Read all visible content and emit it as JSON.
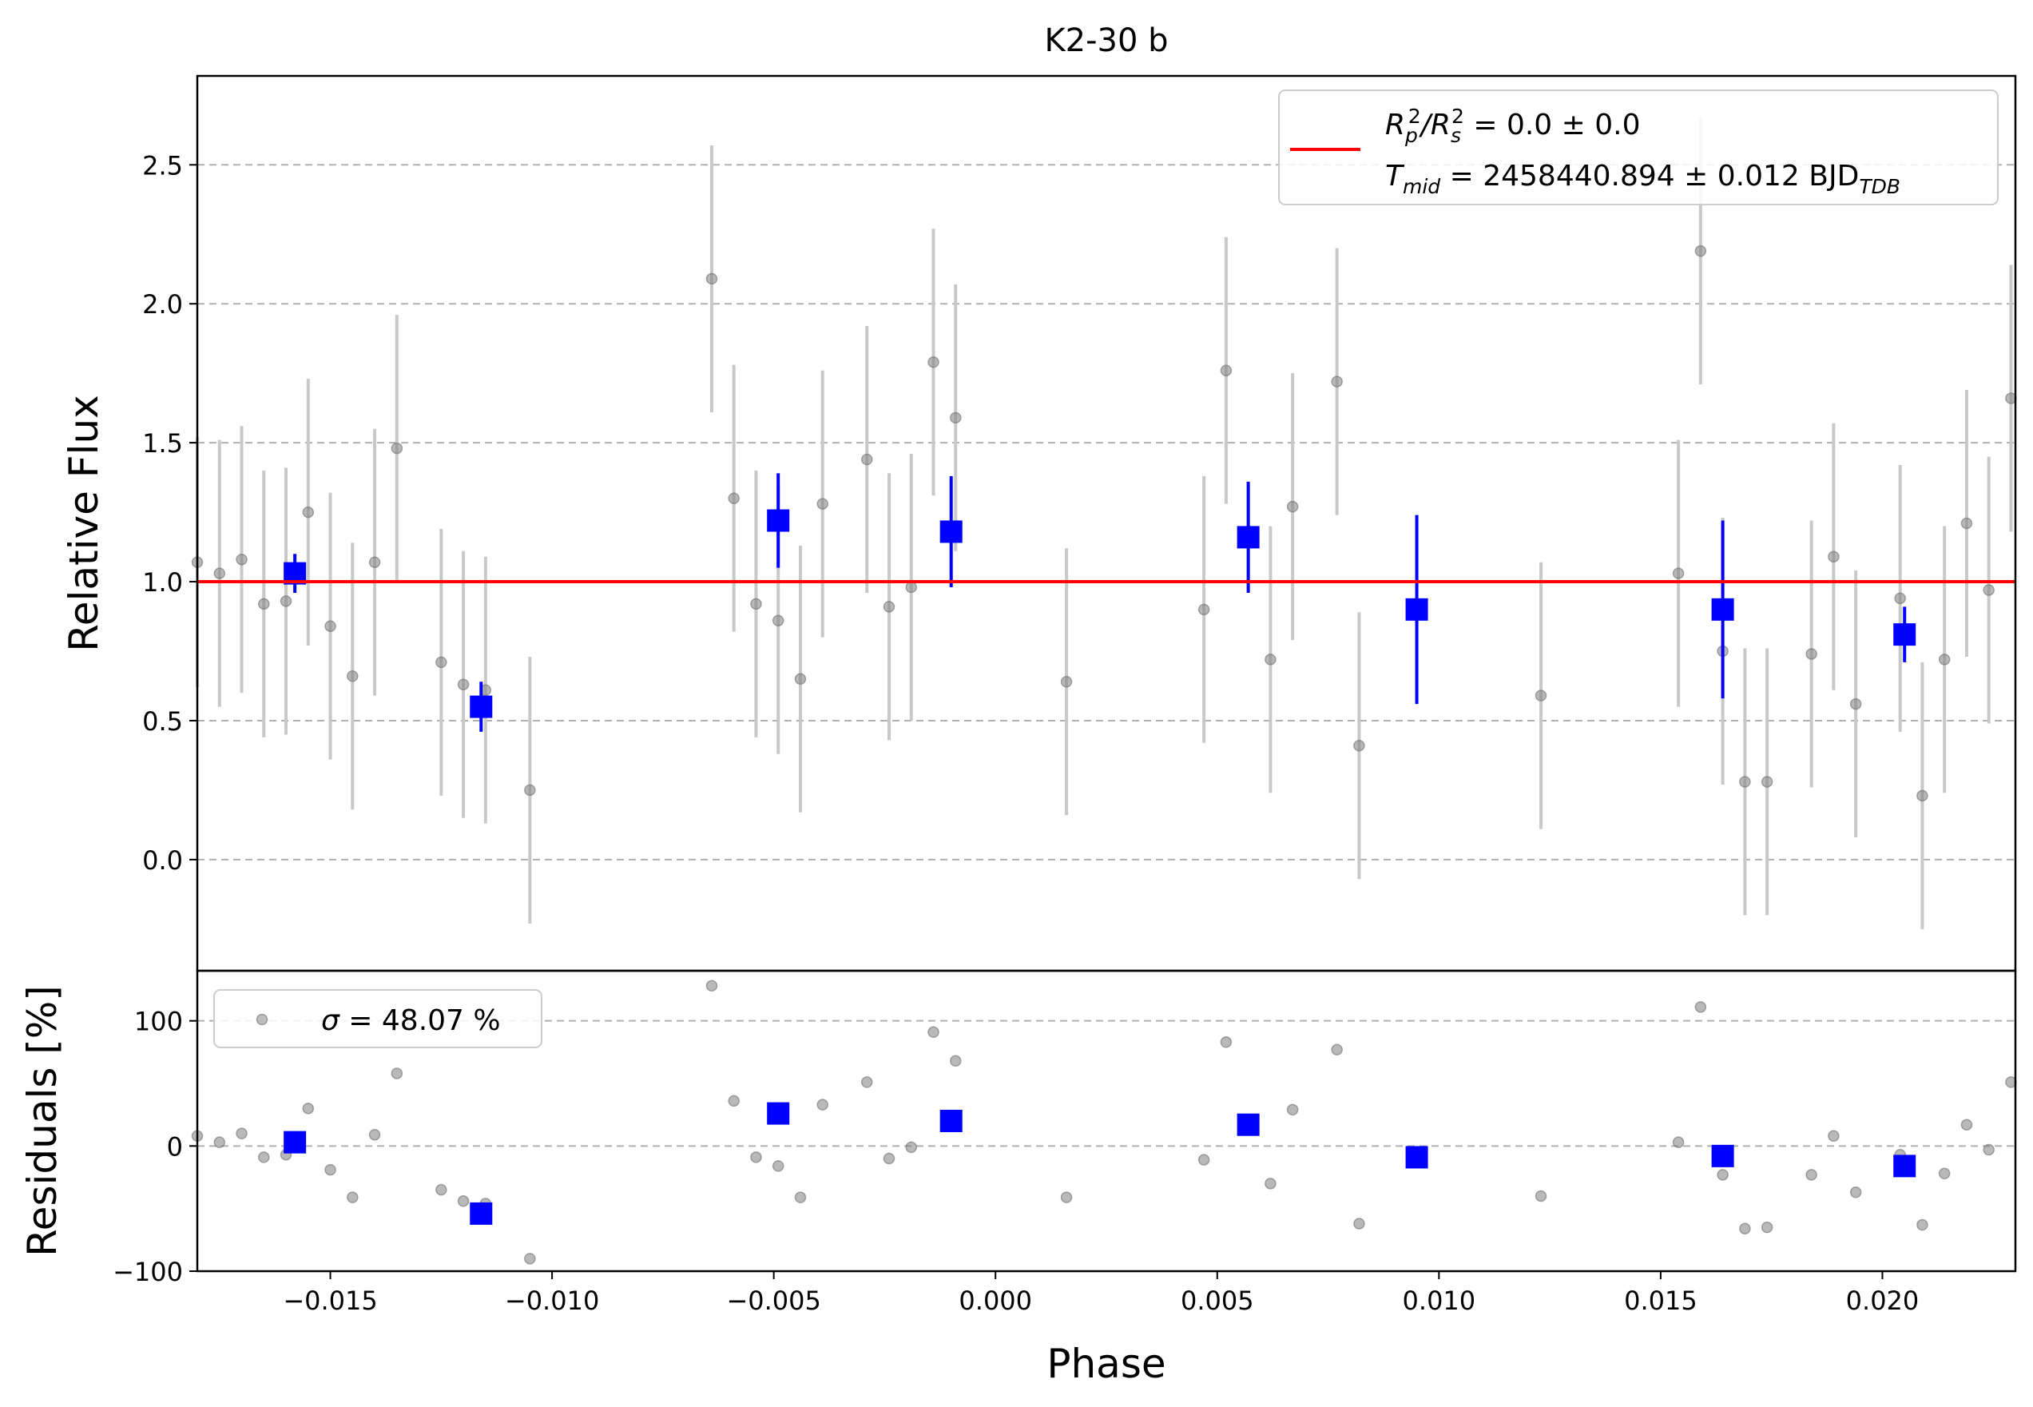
{
  "figure": {
    "title": "K2-30 b",
    "xlabel": "Phase",
    "top_ylabel": "Relative Flux",
    "bottom_ylabel": "Residuals [%]"
  },
  "legend_top": {
    "line1": {
      "main": "R",
      "sub1": "p",
      "sup1": "2",
      "mid": "/R",
      "sub2": "s",
      "sup2": "2",
      "rest": " = 0.0 ± 0.0"
    },
    "line2": {
      "main": "T",
      "sub1": "mid",
      "rest": " = 2458440.894 ± 0.012 BJD",
      "sub2": "TDB"
    }
  },
  "legend_bottom": {
    "sigma_symbol": "σ",
    "sigma_text": " = 48.07 %"
  },
  "colors": {
    "model": "#ff0000",
    "binned": "#0000ff",
    "raw_point": "#808080",
    "raw_err": "#c8c8c8",
    "grid": "#b0b0b0"
  },
  "chart_data": [
    {
      "type": "scatter",
      "panel": "top",
      "title": "K2-30 b",
      "xlabel": "",
      "ylabel": "Relative Flux",
      "xlim": [
        -0.018,
        0.023
      ],
      "ylim": [
        -0.4,
        2.82
      ],
      "yticks": [
        0.0,
        0.5,
        1.0,
        1.5,
        2.0,
        2.5
      ],
      "ytick_labels": [
        "0.0",
        "0.5",
        "1.0",
        "1.5",
        "2.0",
        "2.5"
      ],
      "grid": "horizontal dashed",
      "legend": "top-right",
      "model_line": {
        "y": 1.0
      },
      "raw_points": [
        [
          -0.018,
          1.07,
          0.45
        ],
        [
          -0.0175,
          1.03,
          0.48
        ],
        [
          -0.017,
          1.08,
          0.48
        ],
        [
          -0.0165,
          0.92,
          0.48
        ],
        [
          -0.016,
          0.93,
          0.48
        ],
        [
          -0.0155,
          1.25,
          0.48
        ],
        [
          -0.015,
          0.84,
          0.48
        ],
        [
          -0.0145,
          0.66,
          0.48
        ],
        [
          -0.014,
          1.07,
          0.48
        ],
        [
          -0.0135,
          1.48,
          0.48
        ],
        [
          -0.0125,
          0.71,
          0.48
        ],
        [
          -0.012,
          0.63,
          0.48
        ],
        [
          -0.0115,
          0.61,
          0.48
        ],
        [
          -0.0105,
          0.25,
          0.48
        ],
        [
          -0.0064,
          2.09,
          0.48
        ],
        [
          -0.0059,
          1.3,
          0.48
        ],
        [
          -0.0054,
          0.92,
          0.48
        ],
        [
          -0.0049,
          0.86,
          0.48
        ],
        [
          -0.0044,
          0.65,
          0.48
        ],
        [
          -0.0039,
          1.28,
          0.48
        ],
        [
          -0.0029,
          1.44,
          0.48
        ],
        [
          -0.0024,
          0.91,
          0.48
        ],
        [
          -0.0019,
          0.98,
          0.48
        ],
        [
          -0.0014,
          1.79,
          0.48
        ],
        [
          -0.0009,
          1.59,
          0.48
        ],
        [
          0.0016,
          0.64,
          0.48
        ],
        [
          0.0047,
          0.9,
          0.48
        ],
        [
          0.0052,
          1.76,
          0.48
        ],
        [
          0.0062,
          0.72,
          0.48
        ],
        [
          0.0067,
          1.27,
          0.48
        ],
        [
          0.0077,
          1.72,
          0.48
        ],
        [
          0.0082,
          0.41,
          0.48
        ],
        [
          0.0123,
          0.59,
          0.48
        ],
        [
          0.0154,
          1.03,
          0.48
        ],
        [
          0.0159,
          2.19,
          0.48
        ],
        [
          0.0164,
          0.75,
          0.48
        ],
        [
          0.0169,
          0.28,
          0.48
        ],
        [
          0.0174,
          0.28,
          0.48
        ],
        [
          0.0184,
          0.74,
          0.48
        ],
        [
          0.0189,
          1.09,
          0.48
        ],
        [
          0.0194,
          0.56,
          0.48
        ],
        [
          0.0204,
          0.94,
          0.48
        ],
        [
          0.0209,
          0.23,
          0.48
        ],
        [
          0.0214,
          0.72,
          0.48
        ],
        [
          0.0219,
          1.21,
          0.48
        ],
        [
          0.0224,
          0.97,
          0.48
        ],
        [
          0.0229,
          1.66,
          0.48
        ]
      ],
      "binned_points": [
        [
          -0.0158,
          1.03,
          0.07
        ],
        [
          -0.0116,
          0.55,
          0.09
        ],
        [
          -0.0049,
          1.22,
          0.17
        ],
        [
          -0.001,
          1.18,
          0.2
        ],
        [
          0.0057,
          1.16,
          0.2
        ],
        [
          0.0095,
          0.9,
          0.34
        ],
        [
          0.0164,
          0.9,
          0.32
        ],
        [
          0.0205,
          0.81,
          0.1
        ]
      ]
    },
    {
      "type": "scatter",
      "panel": "bottom",
      "xlabel": "Phase",
      "ylabel": "Residuals [%]",
      "xlim": [
        -0.018,
        0.023
      ],
      "ylim": [
        -100,
        140
      ],
      "yticks": [
        -100,
        0,
        100
      ],
      "ytick_labels": [
        "−100",
        "0",
        "100"
      ],
      "xticks": [
        -0.015,
        -0.01,
        -0.005,
        0.0,
        0.005,
        0.01,
        0.015,
        0.02
      ],
      "xtick_labels": [
        "−0.015",
        "−0.010",
        "−0.005",
        "0.000",
        "0.005",
        "0.010",
        "0.015",
        "0.020"
      ],
      "grid": "horizontal dashed",
      "legend": "top-left",
      "raw_points": [
        [
          -0.018,
          8
        ],
        [
          -0.0175,
          3
        ],
        [
          -0.017,
          10
        ],
        [
          -0.0165,
          -9
        ],
        [
          -0.016,
          -7
        ],
        [
          -0.0155,
          30
        ],
        [
          -0.015,
          -19
        ],
        [
          -0.0145,
          -41
        ],
        [
          -0.014,
          9
        ],
        [
          -0.0135,
          58
        ],
        [
          -0.0125,
          -35
        ],
        [
          -0.012,
          -44
        ],
        [
          -0.0115,
          -46
        ],
        [
          -0.0105,
          -90
        ],
        [
          -0.0064,
          128
        ],
        [
          -0.0059,
          36
        ],
        [
          -0.0054,
          -9
        ],
        [
          -0.0049,
          -16
        ],
        [
          -0.0044,
          -41
        ],
        [
          -0.0039,
          33
        ],
        [
          -0.0029,
          51
        ],
        [
          -0.0024,
          -10
        ],
        [
          -0.0019,
          -1
        ],
        [
          -0.0014,
          91
        ],
        [
          -0.0009,
          68
        ],
        [
          0.0016,
          -41
        ],
        [
          0.0047,
          -11
        ],
        [
          0.0052,
          83
        ],
        [
          0.0062,
          -30
        ],
        [
          0.0067,
          29
        ],
        [
          0.0077,
          77
        ],
        [
          0.0082,
          -62
        ],
        [
          0.0123,
          -40
        ],
        [
          0.0154,
          3
        ],
        [
          0.0159,
          111
        ],
        [
          0.0164,
          -23
        ],
        [
          0.0169,
          -66
        ],
        [
          0.0174,
          -65
        ],
        [
          0.0184,
          -23
        ],
        [
          0.0189,
          8
        ],
        [
          0.0194,
          -37
        ],
        [
          0.0204,
          -7
        ],
        [
          0.0209,
          -63
        ],
        [
          0.0214,
          -22
        ],
        [
          0.0219,
          17
        ],
        [
          0.0224,
          -3
        ],
        [
          0.0229,
          51
        ]
      ],
      "binned_points": [
        [
          -0.0158,
          3
        ],
        [
          -0.0116,
          -54
        ],
        [
          -0.0049,
          26
        ],
        [
          -0.001,
          20
        ],
        [
          0.0057,
          17
        ],
        [
          0.0095,
          -9
        ],
        [
          0.0164,
          -8
        ],
        [
          0.0205,
          -16
        ]
      ]
    }
  ]
}
